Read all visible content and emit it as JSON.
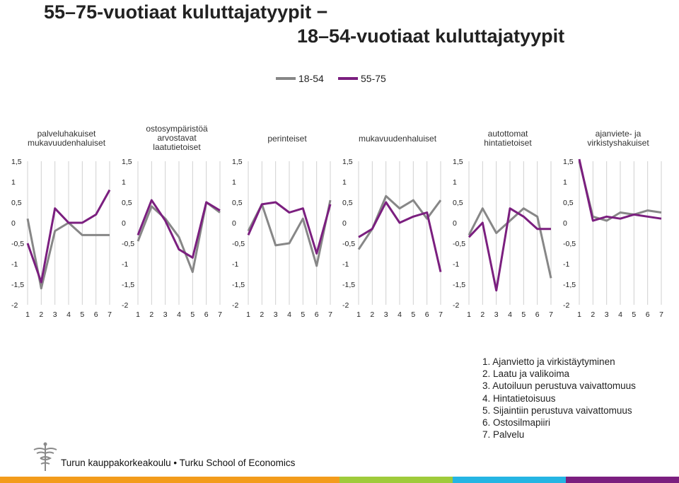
{
  "title": {
    "line1": "55–75-vuotiaat kulutta­jatyypit  −",
    "line2": "18–54-vuotiaat kuluttajatyypit"
  },
  "footer": {
    "text": "Turun kauppakorkeakoulu • Turku School of Economics"
  },
  "notes": [
    "1. Ajanvietto ja virkistäytyminen",
    "2. Laatu ja valikoima",
    "3. Autoiluun perustuva vaivattomuus",
    "4. Hintatietoisuus",
    "5. Sijaintiin perustuva vaivattomuus",
    "6. Ostosilmapiiri",
    "7. Palvelu"
  ],
  "colors": {
    "series_18_54": "#878787",
    "series_55_75": "#7b1f7f",
    "bar_orange": "#f39c1c",
    "bar_green": "#9fcb3b",
    "bar_cyan": "#25b5e3",
    "bar_purple": "#7b1f7f"
  },
  "chart_data": {
    "type": "line",
    "legend": [
      "18-54",
      "55-75"
    ],
    "legend_position": "top",
    "x": [
      1,
      2,
      3,
      4,
      5,
      6,
      7
    ],
    "ylim": [
      -2,
      1.5
    ],
    "yticks": [
      "1,5",
      "1",
      "0,5",
      "0",
      "-0,5",
      "-1",
      "-1,5",
      "-2"
    ],
    "grid": "vertical",
    "panels": [
      {
        "title": [
          "palveluhakuiset",
          "mukavuudenhaluiset"
        ],
        "series": [
          {
            "name": "18-54",
            "values": [
              0.1,
              -1.6,
              -0.2,
              0.0,
              -0.3,
              -0.3,
              -0.3
            ]
          },
          {
            "name": "55-75",
            "values": [
              -0.5,
              -1.45,
              0.35,
              0.0,
              0.0,
              0.2,
              0.8
            ]
          }
        ]
      },
      {
        "title": [
          "ostosympäristöä",
          "arvostavat",
          "laatutietoiset"
        ],
        "series": [
          {
            "name": "18-54",
            "values": [
              -0.45,
              0.4,
              0.1,
              -0.35,
              -1.2,
              0.5,
              0.25
            ]
          },
          {
            "name": "55-75",
            "values": [
              -0.3,
              0.55,
              0.05,
              -0.65,
              -0.85,
              0.5,
              0.3
            ]
          }
        ]
      },
      {
        "title": [
          "perinteiset"
        ],
        "series": [
          {
            "name": "18-54",
            "values": [
              -0.2,
              0.45,
              -0.55,
              -0.5,
              0.1,
              -1.05,
              0.55
            ]
          },
          {
            "name": "55-75",
            "values": [
              -0.3,
              0.45,
              0.5,
              0.25,
              0.35,
              -0.75,
              0.45
            ]
          }
        ]
      },
      {
        "title": [
          "mukavuudenhaluiset"
        ],
        "series": [
          {
            "name": "18-54",
            "values": [
              -0.65,
              -0.15,
              0.65,
              0.35,
              0.55,
              0.1,
              0.55
            ]
          },
          {
            "name": "55-75",
            "values": [
              -0.35,
              -0.15,
              0.5,
              0.0,
              0.15,
              0.25,
              -1.2
            ]
          }
        ]
      },
      {
        "title": [
          "autottomat",
          "hintatietoiset"
        ],
        "series": [
          {
            "name": "18-54",
            "values": [
              -0.3,
              0.35,
              -0.25,
              0.05,
              0.35,
              0.15,
              -1.35
            ]
          },
          {
            "name": "55-75",
            "values": [
              -0.35,
              0.0,
              -1.65,
              0.35,
              0.15,
              -0.15,
              -0.15
            ]
          }
        ]
      },
      {
        "title": [
          "ajanviete- ja",
          "virkistyshakuiset"
        ],
        "series": [
          {
            "name": "18-54",
            "values": [
              1.5,
              0.15,
              0.05,
              0.25,
              0.2,
              0.3,
              0.25
            ]
          },
          {
            "name": "55-75",
            "values": [
              1.55,
              0.05,
              0.15,
              0.1,
              0.2,
              0.15,
              0.1
            ]
          }
        ]
      }
    ]
  }
}
